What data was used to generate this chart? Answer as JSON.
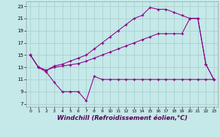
{
  "background_color": "#c5e8e8",
  "grid_color": "#aacfcf",
  "line_color": "#880088",
  "marker": "+",
  "markersize": 3,
  "linewidth": 0.8,
  "xlabel": "Windchill (Refroidissement éolien,°C)",
  "xlabel_fontsize": 6.5,
  "ylabel_ticks": [
    7,
    9,
    11,
    13,
    15,
    17,
    19,
    21,
    23
  ],
  "xlabel_ticks": [
    0,
    1,
    2,
    3,
    4,
    5,
    6,
    7,
    8,
    9,
    10,
    11,
    12,
    13,
    14,
    15,
    16,
    17,
    18,
    19,
    20,
    21,
    22,
    23
  ],
  "xlim": [
    -0.5,
    23.5
  ],
  "ylim": [
    6.5,
    23.8
  ],
  "series1": {
    "x": [
      0,
      1,
      2,
      3,
      4,
      5,
      6,
      7,
      8,
      9,
      10,
      11,
      12,
      13,
      14,
      15,
      16,
      17,
      18,
      19,
      20,
      21,
      22,
      23
    ],
    "y": [
      15,
      13,
      12.2,
      10.5,
      9.0,
      9.0,
      9.0,
      7.5,
      11.5,
      11,
      11,
      11,
      11,
      11,
      11,
      11,
      11,
      11,
      11,
      11,
      11,
      11,
      11,
      11
    ]
  },
  "series2": {
    "x": [
      0,
      1,
      2,
      3,
      4,
      5,
      6,
      7,
      8,
      9,
      10,
      11,
      12,
      13,
      14,
      15,
      16,
      17,
      18,
      19,
      20,
      21,
      22,
      23
    ],
    "y": [
      15,
      13.0,
      12.5,
      13.0,
      13.2,
      13.4,
      13.6,
      14.0,
      14.5,
      15.0,
      15.5,
      16.0,
      16.5,
      17.0,
      17.5,
      18.0,
      18.5,
      18.5,
      18.5,
      18.5,
      21.0,
      21.0,
      13.5,
      11
    ]
  },
  "series3": {
    "x": [
      0,
      1,
      2,
      3,
      4,
      5,
      6,
      7,
      8,
      9,
      10,
      11,
      12,
      13,
      14,
      15,
      16,
      17,
      18,
      19,
      20,
      21,
      22,
      23
    ],
    "y": [
      15,
      13.0,
      12.5,
      13.2,
      13.5,
      14.0,
      14.5,
      15.0,
      16.0,
      17.0,
      18.0,
      19.0,
      20.0,
      21.0,
      21.5,
      22.8,
      22.5,
      22.5,
      22.0,
      21.5,
      21.0,
      21.0,
      13.5,
      11
    ]
  }
}
